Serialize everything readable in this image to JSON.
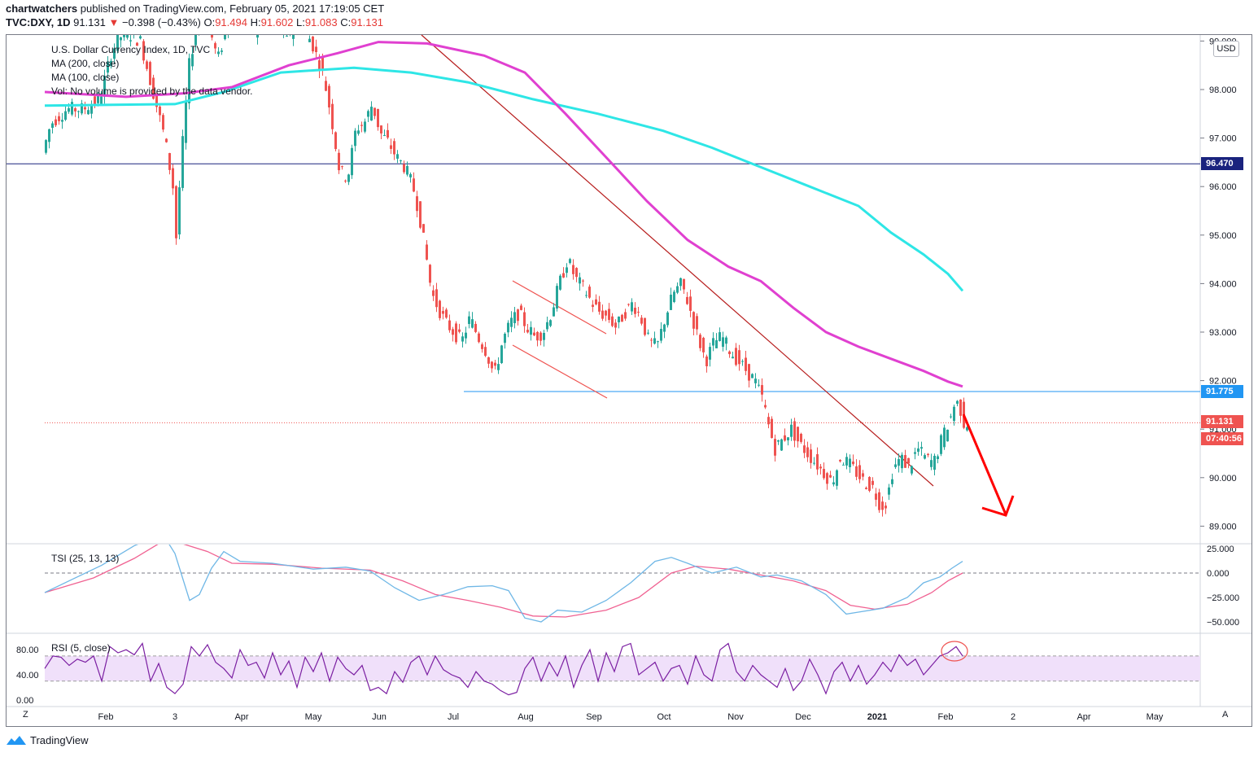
{
  "header": {
    "publisher": "chartwatchers",
    "published_text": "published on TradingView.com, February 05, 2021 17:19:05 CET",
    "symbol": "TVC:DXY, 1D",
    "last": "91.131",
    "change": "−0.398 (−0.43%)",
    "o_label": "O:",
    "o_value": "91.494",
    "h_label": "H:",
    "h_value": "91.602",
    "l_label": "L:",
    "l_value": "91.083",
    "c_label": "C:",
    "c_value": "91.131"
  },
  "legend": {
    "title": "U.S. Dollar Currency Index, 1D, TVC",
    "ma200": "MA (200, close)",
    "ma100": "MA (100, close)",
    "vol": "Vol: No volume is provided by the data vendor.",
    "tsi": "TSI (25, 13, 13)",
    "rsi": "RSI (5, close)"
  },
  "currency": "USD",
  "price_tags": {
    "level_high": "96.470",
    "level_low": "91.775",
    "current": "91.131",
    "countdown": "07:40:56"
  },
  "footer": {
    "brand": "TradingView"
  },
  "corner": {
    "left": "Z",
    "right": "A"
  },
  "colors": {
    "up": "#26a69a",
    "down": "#ef5350",
    "ma200": "#e040d0",
    "ma100": "#2ee6e6",
    "navy_line": "#1a237e",
    "blue_line": "#2196f3",
    "trend": "#b71c1c",
    "arrow": "#ff0000",
    "rsi": "#7b1fa2",
    "rsi_band": "#f0e0fa",
    "tsi": "#6fb7e6",
    "tsi_signal": "#f06292"
  },
  "chart_data": [
    {
      "type": "candlestick",
      "title": "U.S. Dollar Currency Index, 1D, TVC",
      "yaxis_ticks": [
        99.0,
        98.0,
        97.0,
        96.0,
        95.0,
        94.0,
        93.0,
        92.0,
        91.0,
        90.0,
        89.0
      ],
      "ylim": [
        88.6,
        99.6
      ],
      "xaxis_ticks": [
        "Feb",
        "3",
        "Apr",
        "May",
        "Jun",
        "Jul",
        "Aug",
        "Sep",
        "Oct",
        "Nov",
        "Dec",
        "2021",
        "Feb",
        "2",
        "Apr",
        "May"
      ],
      "price_path": [
        [
          0,
          96.7
        ],
        [
          10,
          97.3
        ],
        [
          30,
          97.6
        ],
        [
          50,
          97.6
        ],
        [
          70,
          97.8
        ],
        [
          85,
          98.8
        ],
        [
          100,
          99.2
        ],
        [
          120,
          99.0
        ],
        [
          135,
          98.0
        ],
        [
          150,
          97.0
        ],
        [
          160,
          96.0
        ],
        [
          163,
          94.7
        ],
        [
          170,
          96.5
        ],
        [
          180,
          98.5
        ],
        [
          190,
          99.4
        ],
        [
          200,
          99.6
        ],
        [
          215,
          98.6
        ],
        [
          230,
          99.5
        ],
        [
          245,
          99.3
        ],
        [
          260,
          99.2
        ],
        [
          275,
          99.5
        ],
        [
          290,
          99.3
        ],
        [
          300,
          99.0
        ],
        [
          310,
          99.5
        ],
        [
          330,
          99.0
        ],
        [
          345,
          98.3
        ],
        [
          355,
          97.4
        ],
        [
          365,
          96.3
        ],
        [
          375,
          96.2
        ],
        [
          385,
          97.2
        ],
        [
          395,
          97.3
        ],
        [
          405,
          97.7
        ],
        [
          415,
          97.1
        ],
        [
          425,
          96.9
        ],
        [
          435,
          96.6
        ],
        [
          445,
          96.4
        ],
        [
          455,
          96.0
        ],
        [
          462,
          95.5
        ],
        [
          470,
          94.7
        ],
        [
          478,
          93.8
        ],
        [
          486,
          93.5
        ],
        [
          495,
          93.2
        ],
        [
          505,
          93.0
        ],
        [
          515,
          92.8
        ],
        [
          525,
          93.3
        ],
        [
          535,
          92.9
        ],
        [
          545,
          92.6
        ],
        [
          555,
          92.1
        ],
        [
          565,
          92.8
        ],
        [
          575,
          93.2
        ],
        [
          585,
          93.4
        ],
        [
          595,
          93.1
        ],
        [
          605,
          92.9
        ],
        [
          615,
          93.0
        ],
        [
          625,
          93.4
        ],
        [
          635,
          94.0
        ],
        [
          645,
          94.5
        ],
        [
          655,
          94.1
        ],
        [
          665,
          93.9
        ],
        [
          675,
          93.6
        ],
        [
          685,
          93.4
        ],
        [
          695,
          93.3
        ],
        [
          705,
          93.1
        ],
        [
          715,
          93.4
        ],
        [
          725,
          93.6
        ],
        [
          735,
          93.3
        ],
        [
          745,
          92.8
        ],
        [
          755,
          92.7
        ],
        [
          765,
          93.3
        ],
        [
          775,
          93.8
        ],
        [
          785,
          94.0
        ],
        [
          795,
          93.5
        ],
        [
          805,
          92.9
        ],
        [
          815,
          92.4
        ],
        [
          825,
          92.8
        ],
        [
          835,
          92.9
        ],
        [
          845,
          92.6
        ],
        [
          855,
          92.4
        ],
        [
          865,
          92.2
        ],
        [
          875,
          92.0
        ],
        [
          885,
          91.6
        ],
        [
          893,
          91.0
        ],
        [
          900,
          90.6
        ],
        [
          910,
          90.8
        ],
        [
          920,
          91.0
        ],
        [
          930,
          90.7
        ],
        [
          940,
          90.5
        ],
        [
          950,
          90.3
        ],
        [
          960,
          90.1
        ],
        [
          970,
          89.9
        ],
        [
          980,
          90.4
        ],
        [
          990,
          90.3
        ],
        [
          1000,
          90.1
        ],
        [
          1010,
          89.9
        ],
        [
          1020,
          89.8
        ],
        [
          1030,
          89.4
        ],
        [
          1037,
          89.5
        ],
        [
          1045,
          90.2
        ],
        [
          1055,
          90.4
        ],
        [
          1065,
          90.2
        ],
        [
          1075,
          90.6
        ],
        [
          1085,
          90.4
        ],
        [
          1095,
          90.3
        ],
        [
          1105,
          90.8
        ],
        [
          1115,
          91.2
        ],
        [
          1122,
          91.6
        ],
        [
          1128,
          91.4
        ],
        [
          1132,
          91.13
        ]
      ],
      "ma200_path": [
        [
          0,
          97.67
        ],
        [
          160,
          97.7
        ],
        [
          220,
          97.95
        ],
        [
          290,
          98.35
        ],
        [
          380,
          98.45
        ],
        [
          450,
          98.35
        ],
        [
          520,
          98.15
        ],
        [
          600,
          97.8
        ],
        [
          680,
          97.5
        ],
        [
          760,
          97.15
        ],
        [
          820,
          96.8
        ],
        [
          880,
          96.4
        ],
        [
          940,
          96.0
        ],
        [
          1000,
          95.6
        ],
        [
          1040,
          95.05
        ],
        [
          1080,
          94.6
        ],
        [
          1110,
          94.2
        ],
        [
          1128,
          93.85
        ]
      ],
      "ma100_path": [
        [
          0,
          97.95
        ],
        [
          100,
          97.85
        ],
        [
          170,
          97.92
        ],
        [
          230,
          98.05
        ],
        [
          300,
          98.5
        ],
        [
          360,
          98.75
        ],
        [
          410,
          98.98
        ],
        [
          470,
          98.95
        ],
        [
          540,
          98.7
        ],
        [
          590,
          98.35
        ],
        [
          640,
          97.5
        ],
        [
          690,
          96.6
        ],
        [
          740,
          95.7
        ],
        [
          790,
          94.9
        ],
        [
          840,
          94.35
        ],
        [
          880,
          94.05
        ],
        [
          920,
          93.5
        ],
        [
          960,
          93.0
        ],
        [
          1000,
          92.7
        ],
        [
          1040,
          92.45
        ],
        [
          1080,
          92.2
        ],
        [
          1110,
          91.98
        ],
        [
          1128,
          91.88
        ]
      ],
      "levels": [
        96.47,
        91.775,
        91.131
      ]
    },
    {
      "type": "line",
      "title": "TSI (25, 13, 13)",
      "yaxis_ticks": [
        25.0,
        0.0,
        -25.0,
        -50.0
      ],
      "ylim": [
        -55,
        30
      ],
      "tsi_path": [
        [
          0,
          -20
        ],
        [
          30,
          -8
        ],
        [
          70,
          8
        ],
        [
          110,
          28
        ],
        [
          145,
          40
        ],
        [
          160,
          20
        ],
        [
          178,
          -28
        ],
        [
          190,
          -22
        ],
        [
          205,
          5
        ],
        [
          220,
          22
        ],
        [
          240,
          12
        ],
        [
          280,
          10
        ],
        [
          330,
          4
        ],
        [
          370,
          6
        ],
        [
          400,
          2
        ],
        [
          430,
          -15
        ],
        [
          460,
          -28
        ],
        [
          490,
          -22
        ],
        [
          520,
          -14
        ],
        [
          550,
          -13
        ],
        [
          570,
          -18
        ],
        [
          590,
          -46
        ],
        [
          610,
          -50
        ],
        [
          630,
          -38
        ],
        [
          660,
          -40
        ],
        [
          690,
          -28
        ],
        [
          720,
          -10
        ],
        [
          750,
          12
        ],
        [
          770,
          16
        ],
        [
          790,
          10
        ],
        [
          820,
          0
        ],
        [
          850,
          6
        ],
        [
          880,
          -4
        ],
        [
          900,
          -2
        ],
        [
          930,
          -8
        ],
        [
          960,
          -22
        ],
        [
          985,
          -42
        ],
        [
          1000,
          -40
        ],
        [
          1030,
          -36
        ],
        [
          1060,
          -25
        ],
        [
          1080,
          -10
        ],
        [
          1100,
          -4
        ],
        [
          1115,
          5
        ],
        [
          1128,
          12
        ]
      ],
      "signal_path": [
        [
          0,
          -20
        ],
        [
          60,
          -5
        ],
        [
          110,
          15
        ],
        [
          150,
          35
        ],
        [
          200,
          22
        ],
        [
          230,
          10
        ],
        [
          280,
          9
        ],
        [
          340,
          5
        ],
        [
          400,
          3
        ],
        [
          440,
          -8
        ],
        [
          480,
          -22
        ],
        [
          520,
          -28
        ],
        [
          560,
          -35
        ],
        [
          600,
          -44
        ],
        [
          640,
          -45
        ],
        [
          690,
          -38
        ],
        [
          730,
          -25
        ],
        [
          770,
          0
        ],
        [
          800,
          7
        ],
        [
          840,
          4
        ],
        [
          880,
          -2
        ],
        [
          920,
          -8
        ],
        [
          960,
          -18
        ],
        [
          990,
          -33
        ],
        [
          1020,
          -37
        ],
        [
          1060,
          -32
        ],
        [
          1090,
          -20
        ],
        [
          1110,
          -8
        ],
        [
          1128,
          0
        ]
      ]
    },
    {
      "type": "line",
      "title": "RSI (5, close)",
      "yaxis_ticks": [
        80.0,
        40.0,
        0.0
      ],
      "band": [
        30,
        70
      ],
      "ylim": [
        -5,
        100
      ],
      "rsi_path": [
        [
          0,
          50
        ],
        [
          10,
          70
        ],
        [
          20,
          68
        ],
        [
          30,
          55
        ],
        [
          40,
          65
        ],
        [
          50,
          60
        ],
        [
          60,
          70
        ],
        [
          70,
          30
        ],
        [
          80,
          85
        ],
        [
          90,
          75
        ],
        [
          100,
          80
        ],
        [
          110,
          72
        ],
        [
          120,
          90
        ],
        [
          130,
          30
        ],
        [
          140,
          58
        ],
        [
          150,
          20
        ],
        [
          160,
          10
        ],
        [
          170,
          25
        ],
        [
          180,
          85
        ],
        [
          190,
          70
        ],
        [
          200,
          88
        ],
        [
          210,
          60
        ],
        [
          220,
          50
        ],
        [
          230,
          35
        ],
        [
          240,
          80
        ],
        [
          250,
          55
        ],
        [
          260,
          60
        ],
        [
          270,
          35
        ],
        [
          280,
          75
        ],
        [
          290,
          40
        ],
        [
          300,
          62
        ],
        [
          310,
          20
        ],
        [
          320,
          68
        ],
        [
          330,
          45
        ],
        [
          340,
          75
        ],
        [
          350,
          30
        ],
        [
          360,
          68
        ],
        [
          370,
          50
        ],
        [
          380,
          40
        ],
        [
          390,
          55
        ],
        [
          400,
          15
        ],
        [
          410,
          20
        ],
        [
          420,
          10
        ],
        [
          430,
          45
        ],
        [
          440,
          28
        ],
        [
          450,
          60
        ],
        [
          460,
          70
        ],
        [
          470,
          40
        ],
        [
          480,
          70
        ],
        [
          490,
          48
        ],
        [
          500,
          40
        ],
        [
          510,
          35
        ],
        [
          520,
          20
        ],
        [
          530,
          45
        ],
        [
          540,
          30
        ],
        [
          550,
          25
        ],
        [
          560,
          15
        ],
        [
          570,
          8
        ],
        [
          580,
          12
        ],
        [
          590,
          50
        ],
        [
          600,
          68
        ],
        [
          610,
          30
        ],
        [
          620,
          60
        ],
        [
          630,
          38
        ],
        [
          640,
          70
        ],
        [
          650,
          20
        ],
        [
          660,
          55
        ],
        [
          670,
          80
        ],
        [
          680,
          30
        ],
        [
          690,
          75
        ],
        [
          700,
          45
        ],
        [
          710,
          85
        ],
        [
          720,
          90
        ],
        [
          730,
          40
        ],
        [
          740,
          50
        ],
        [
          750,
          60
        ],
        [
          760,
          30
        ],
        [
          770,
          50
        ],
        [
          780,
          55
        ],
        [
          790,
          25
        ],
        [
          800,
          70
        ],
        [
          810,
          40
        ],
        [
          820,
          30
        ],
        [
          830,
          80
        ],
        [
          840,
          90
        ],
        [
          850,
          45
        ],
        [
          860,
          30
        ],
        [
          870,
          55
        ],
        [
          880,
          40
        ],
        [
          890,
          30
        ],
        [
          900,
          20
        ],
        [
          910,
          50
        ],
        [
          920,
          15
        ],
        [
          930,
          30
        ],
        [
          940,
          65
        ],
        [
          950,
          40
        ],
        [
          960,
          10
        ],
        [
          970,
          45
        ],
        [
          980,
          60
        ],
        [
          990,
          30
        ],
        [
          1000,
          55
        ],
        [
          1010,
          25
        ],
        [
          1020,
          40
        ],
        [
          1030,
          60
        ],
        [
          1040,
          45
        ],
        [
          1050,
          72
        ],
        [
          1060,
          55
        ],
        [
          1070,
          65
        ],
        [
          1080,
          40
        ],
        [
          1090,
          55
        ],
        [
          1100,
          70
        ],
        [
          1110,
          75
        ],
        [
          1120,
          85
        ],
        [
          1128,
          70
        ]
      ]
    }
  ]
}
